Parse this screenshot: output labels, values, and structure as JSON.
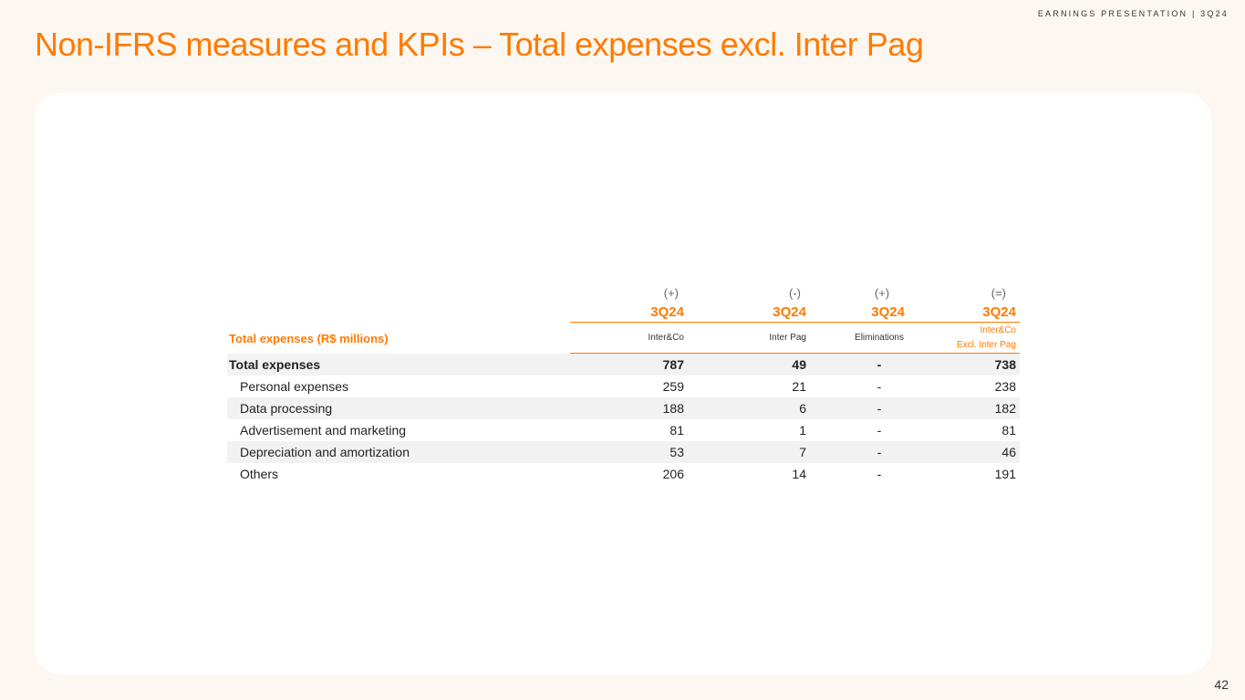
{
  "header": {
    "tag": "EARNINGS PRESENTATION | 3Q24"
  },
  "page": {
    "title": "Non-IFRS measures and KPIs – Total expenses excl. Inter Pag",
    "number": "42"
  },
  "table": {
    "signs": [
      "(+)",
      "(-)",
      "(+)",
      "(=)"
    ],
    "periods": [
      "3Q24",
      "3Q24",
      "3Q24",
      "3Q24"
    ],
    "label_header": "Total expenses (R$ millions)",
    "columns": [
      "Inter&Co",
      "Inter Pag",
      "Eliminations",
      "Inter&Co",
      "Excl. Inter Pag"
    ],
    "rows": [
      {
        "label": "Total expenses",
        "values": [
          "787",
          "49",
          "-",
          "738"
        ]
      },
      {
        "label": "Personal expenses",
        "values": [
          "259",
          "21",
          "-",
          "238"
        ]
      },
      {
        "label": "Data processing",
        "values": [
          "188",
          "6",
          "-",
          "182"
        ]
      },
      {
        "label": "Advertisement and marketing",
        "values": [
          "81",
          "1",
          "-",
          "81"
        ]
      },
      {
        "label": "Depreciation and amortization",
        "values": [
          "53",
          "7",
          "-",
          "46"
        ]
      },
      {
        "label": "Others",
        "values": [
          "206",
          "14",
          "-",
          "191"
        ]
      }
    ]
  },
  "colors": {
    "accent": "#ff7a00",
    "background": "#fdf7f1",
    "card": "#ffffff",
    "shade": "#f2f2f2"
  }
}
